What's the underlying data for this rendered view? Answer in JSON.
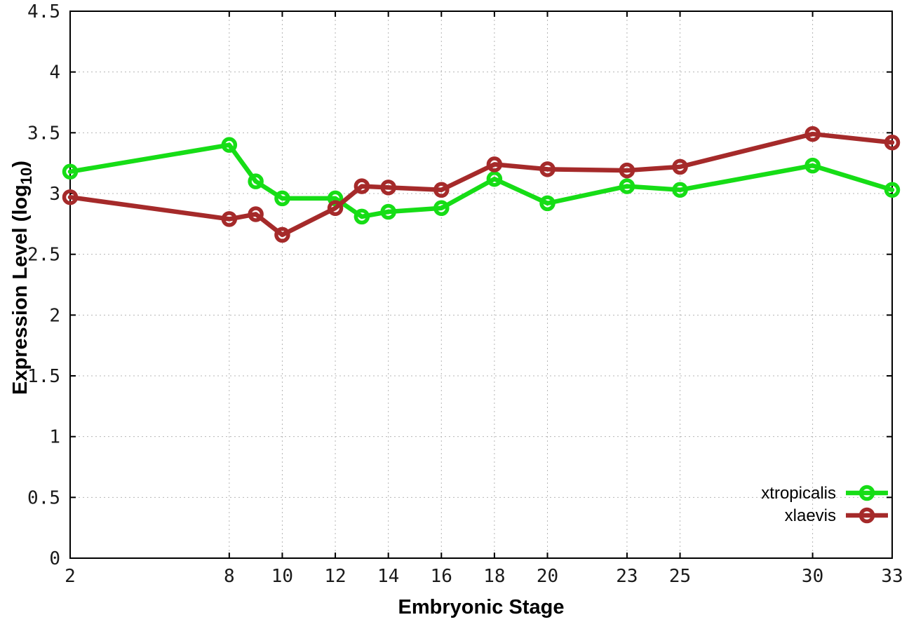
{
  "chart_data": {
    "type": "line",
    "title": "",
    "xlabel": "Embryonic Stage",
    "ylabel_prefix": "Expression Level (log",
    "ylabel_sub": "10",
    "ylabel_suffix": ")",
    "x": [
      2,
      8,
      9,
      10,
      12,
      13,
      14,
      16,
      18,
      20,
      23,
      25,
      30,
      33
    ],
    "x_tick_labels": [
      2,
      8,
      10,
      12,
      14,
      16,
      18,
      20,
      23,
      25,
      30,
      33
    ],
    "y_tick_labels": [
      0,
      0.5,
      1,
      1.5,
      2,
      2.5,
      3,
      3.5,
      4,
      4.5
    ],
    "xlim": [
      2,
      33
    ],
    "ylim": [
      0,
      4.5
    ],
    "grid": true,
    "legend_position": "bottom-right",
    "series": [
      {
        "name": "xtropicalis",
        "color": "#16DD16",
        "values": [
          3.18,
          3.4,
          3.1,
          2.96,
          2.96,
          2.81,
          2.85,
          2.88,
          3.12,
          2.92,
          3.06,
          3.03,
          3.23,
          3.03
        ]
      },
      {
        "name": "xlaevis",
        "color": "#A52A2A",
        "values": [
          2.97,
          2.79,
          2.83,
          2.66,
          2.88,
          3.06,
          3.05,
          3.03,
          3.24,
          3.2,
          3.19,
          3.22,
          3.49,
          3.42
        ]
      }
    ]
  },
  "style_colors": {
    "border": "#000000",
    "grid": "#b5b5b5",
    "background": "#ffffff",
    "tick_text": "#1a1a1a"
  }
}
